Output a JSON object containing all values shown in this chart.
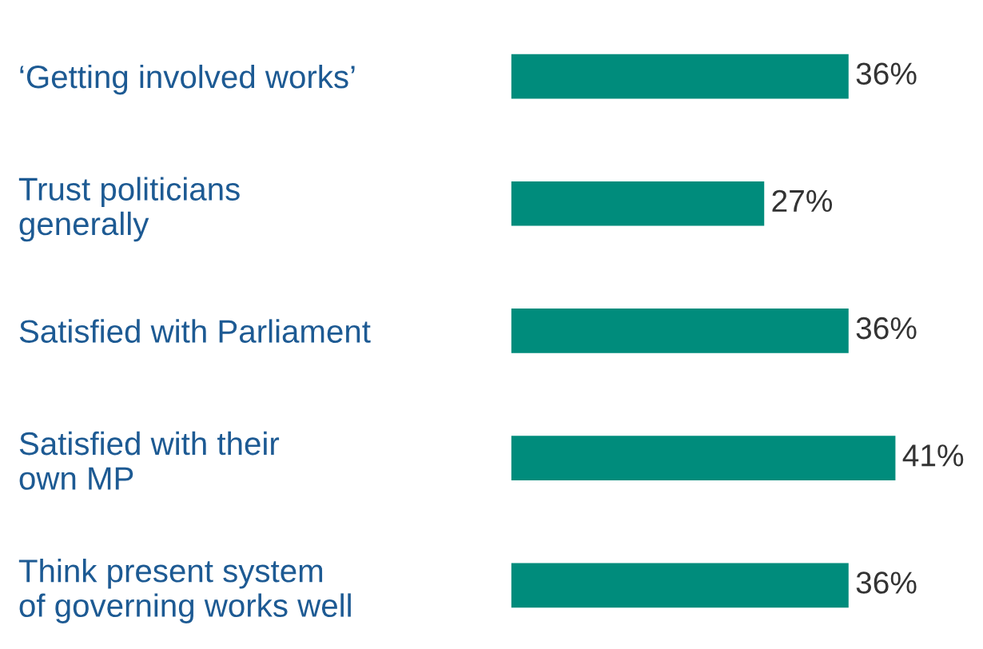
{
  "chart_data": {
    "type": "bar",
    "orientation": "horizontal",
    "categories": [
      "‘Getting involved works’",
      "Trust politicians\ngenerally",
      "Satisfied with Parliament",
      "Satisfied with their\nown MP",
      "Think present system\nof governing works well"
    ],
    "values": [
      36,
      27,
      36,
      41,
      36
    ],
    "value_labels": [
      "36%",
      "27%",
      "36%",
      "41%",
      "36%"
    ],
    "color": "#008c7c",
    "tick_labels": "y",
    "grid": false,
    "legend": false
  }
}
